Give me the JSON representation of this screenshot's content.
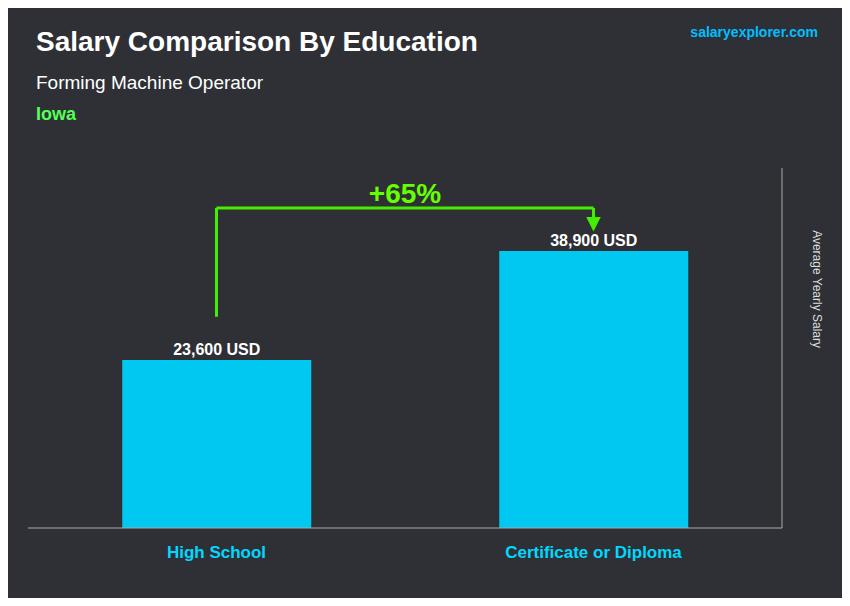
{
  "chart_data": {
    "type": "bar",
    "title": "Salary Comparison By Education",
    "subtitle": "Forming Machine Operator",
    "location": "Iowa",
    "source": "salaryexplorer.com",
    "y_label": "Average Yearly Salary",
    "categories": [
      "High School",
      "Certificate or Diploma"
    ],
    "values": [
      23600,
      38900
    ],
    "value_labels": [
      "23,600 USD",
      "38,900 USD"
    ],
    "data_labels": true,
    "color": "#00C8F0",
    "annotation": "+65%",
    "ylim": [
      0,
      50570
    ],
    "yticks": [],
    "tick_labels": "x",
    "grid": false
  }
}
